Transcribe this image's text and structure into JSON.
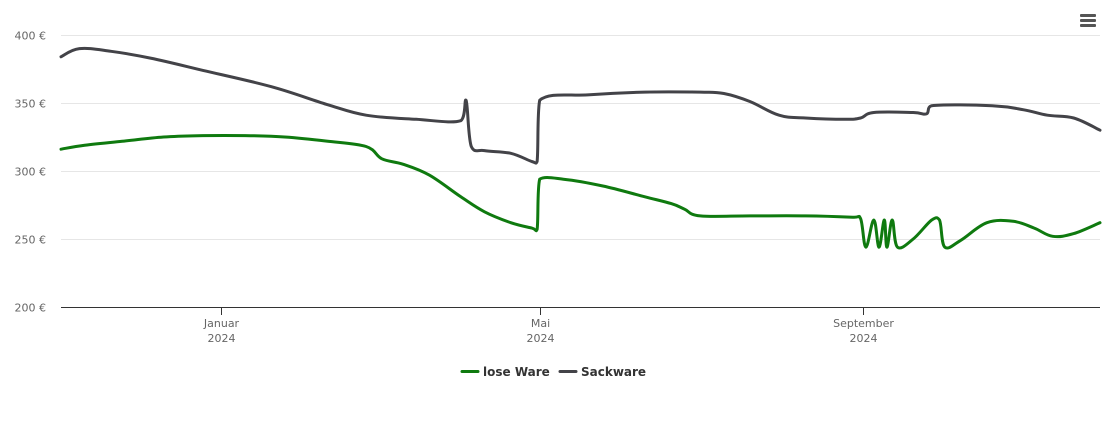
{
  "chart_data": {
    "type": "line",
    "title": "",
    "xlabel": "",
    "ylabel": "",
    "ylim": [
      200,
      400
    ],
    "yticks": [
      {
        "value": 200,
        "label": "200 €"
      },
      {
        "value": 250,
        "label": "250 €"
      },
      {
        "value": 300,
        "label": "300 €"
      },
      {
        "value": 350,
        "label": "350 €"
      },
      {
        "value": 400,
        "label": "400 €"
      }
    ],
    "xlim": [
      "2023-11-01",
      "2024-11-30"
    ],
    "xticks": [
      {
        "date": "2024-01-01",
        "label": "Januar",
        "sublabel": "2024"
      },
      {
        "date": "2024-05-01",
        "label": "Mai",
        "sublabel": "2024"
      },
      {
        "date": "2024-09-01",
        "label": "September",
        "sublabel": "2024"
      }
    ],
    "grid": true,
    "legend_position": "bottom-center",
    "series": [
      {
        "name": "lose Ware",
        "color": "#0f7a0f",
        "points": [
          [
            "2023-11-01",
            316
          ],
          [
            "2023-11-10",
            319
          ],
          [
            "2023-11-25",
            322
          ],
          [
            "2023-12-10",
            325
          ],
          [
            "2023-12-25",
            326
          ],
          [
            "2024-01-10",
            326
          ],
          [
            "2024-01-25",
            325
          ],
          [
            "2024-02-10",
            322
          ],
          [
            "2024-02-25",
            318
          ],
          [
            "2024-03-02",
            309
          ],
          [
            "2024-03-10",
            305
          ],
          [
            "2024-03-20",
            297
          ],
          [
            "2024-04-01",
            281
          ],
          [
            "2024-04-10",
            270
          ],
          [
            "2024-04-20",
            262
          ],
          [
            "2024-04-28",
            258
          ],
          [
            "2024-04-30",
            257
          ],
          [
            "2024-05-01",
            294
          ],
          [
            "2024-05-10",
            294
          ],
          [
            "2024-05-25",
            289
          ],
          [
            "2024-06-10",
            281
          ],
          [
            "2024-06-20",
            276
          ],
          [
            "2024-06-25",
            272
          ],
          [
            "2024-07-01",
            267
          ],
          [
            "2024-07-20",
            267
          ],
          [
            "2024-08-10",
            267
          ],
          [
            "2024-08-28",
            266
          ],
          [
            "2024-08-31",
            265
          ],
          [
            "2024-09-02",
            244
          ],
          [
            "2024-09-05",
            264
          ],
          [
            "2024-09-07",
            244
          ],
          [
            "2024-09-09",
            264
          ],
          [
            "2024-09-10",
            244
          ],
          [
            "2024-09-12",
            264
          ],
          [
            "2024-09-14",
            244
          ],
          [
            "2024-09-20",
            250
          ],
          [
            "2024-09-27",
            264
          ],
          [
            "2024-09-30",
            264
          ],
          [
            "2024-10-02",
            244
          ],
          [
            "2024-10-08",
            249
          ],
          [
            "2024-10-18",
            262
          ],
          [
            "2024-10-28",
            263
          ],
          [
            "2024-11-05",
            258
          ],
          [
            "2024-11-12",
            252
          ],
          [
            "2024-11-20",
            254
          ],
          [
            "2024-11-30",
            262
          ]
        ]
      },
      {
        "name": "Sackware",
        "color": "#434348",
        "points": [
          [
            "2023-11-01",
            384
          ],
          [
            "2023-11-08",
            390
          ],
          [
            "2023-11-20",
            388
          ],
          [
            "2023-12-05",
            383
          ],
          [
            "2023-12-25",
            374
          ],
          [
            "2024-01-20",
            362
          ],
          [
            "2024-02-10",
            349
          ],
          [
            "2024-02-25",
            341
          ],
          [
            "2024-03-15",
            338
          ],
          [
            "2024-04-01",
            337
          ],
          [
            "2024-04-03",
            352
          ],
          [
            "2024-04-05",
            318
          ],
          [
            "2024-04-10",
            315
          ],
          [
            "2024-04-20",
            313
          ],
          [
            "2024-04-28",
            307
          ],
          [
            "2024-04-30",
            307
          ],
          [
            "2024-05-01",
            352
          ],
          [
            "2024-05-20",
            356
          ],
          [
            "2024-06-10",
            358
          ],
          [
            "2024-07-01",
            358
          ],
          [
            "2024-07-10",
            357
          ],
          [
            "2024-07-20",
            351
          ],
          [
            "2024-07-31",
            341
          ],
          [
            "2024-08-10",
            339
          ],
          [
            "2024-08-25",
            338
          ],
          [
            "2024-08-31",
            339
          ],
          [
            "2024-09-05",
            343
          ],
          [
            "2024-09-20",
            343
          ],
          [
            "2024-09-25",
            342
          ],
          [
            "2024-09-27",
            348
          ],
          [
            "2024-10-20",
            348
          ],
          [
            "2024-11-01",
            345
          ],
          [
            "2024-11-10",
            341
          ],
          [
            "2024-11-20",
            339
          ],
          [
            "2024-11-30",
            330
          ]
        ]
      }
    ]
  },
  "menu": {
    "icon": "hamburger-menu-icon"
  }
}
